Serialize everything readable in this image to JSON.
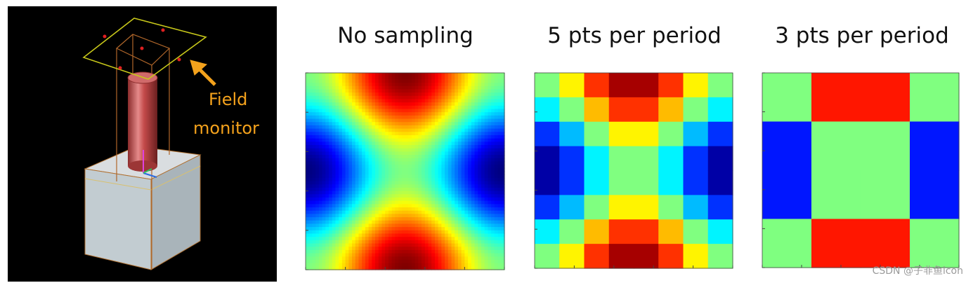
{
  "scene": {
    "label_line1": "Field",
    "label_line2": "monitor",
    "arrow_color": "#f4a21c"
  },
  "panels": [
    {
      "title": "No sampling",
      "type": "continuous"
    },
    {
      "title": "5 pts per period",
      "type": "grid",
      "n": 5
    },
    {
      "title": "3 pts per period",
      "type": "grid",
      "n": 3
    }
  ],
  "colormap": "jet",
  "watermark": "CSDN @子非鱼icon"
}
